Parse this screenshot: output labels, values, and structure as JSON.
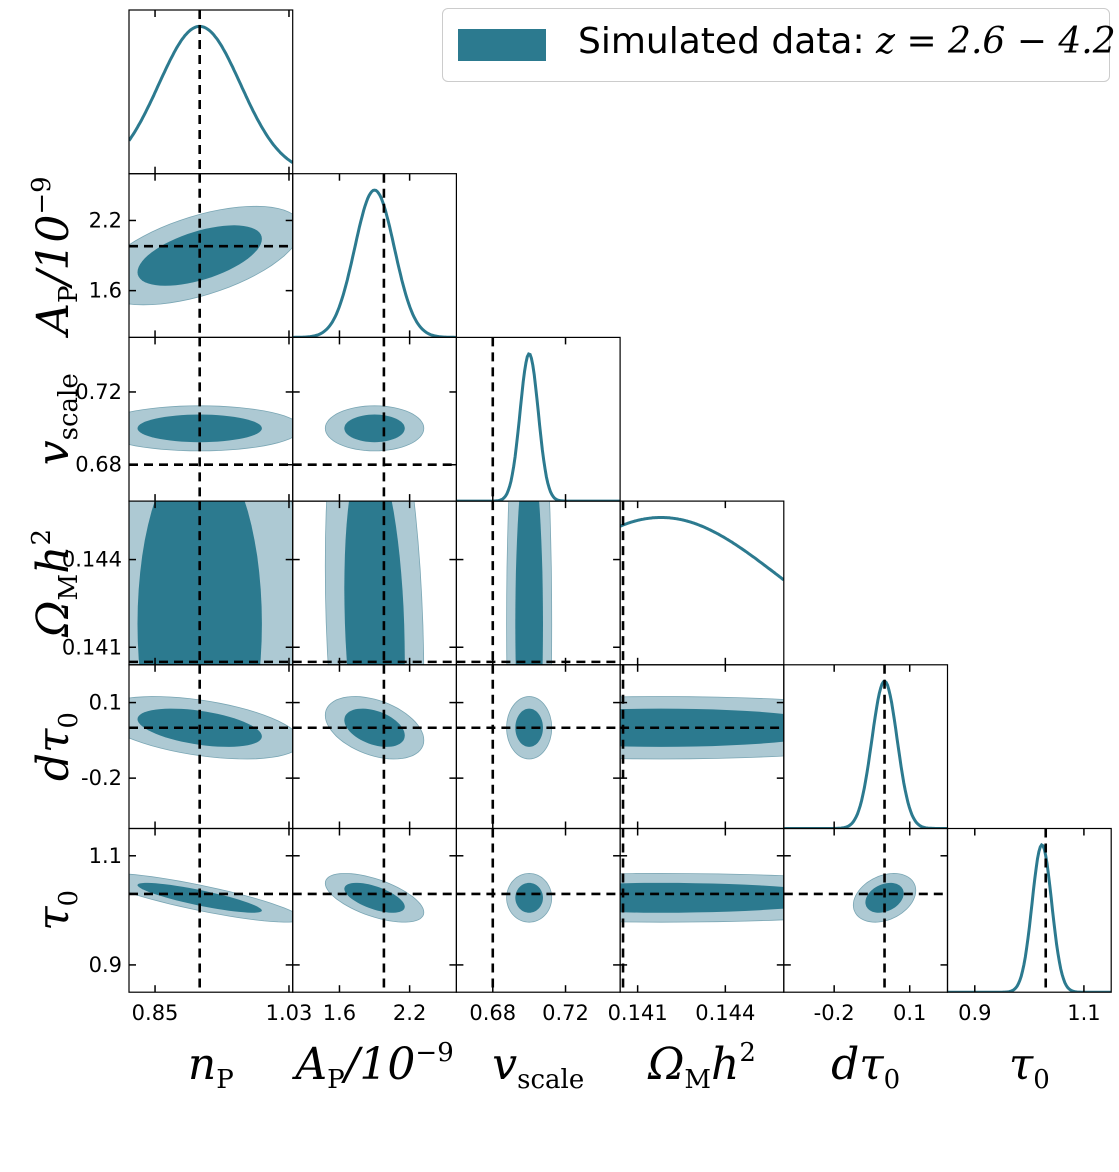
{
  "legend": {
    "label": "Simulated data:",
    "math": "z = 2.6 − 4.2",
    "color": "#2c7a8f"
  },
  "colors": {
    "dark": "#2c7a8f",
    "light": "#adc9d3",
    "truth": "#000000"
  },
  "chart_data": {
    "type": "corner",
    "parameters": [
      {
        "key": "nP",
        "label_base": "n",
        "label_sub": "P",
        "range": [
          0.815,
          1.035
        ],
        "truth": 0.91,
        "mean": 0.91,
        "sigma": 0.055,
        "ticks": [
          "0.85",
          "1.03"
        ],
        "tick_values": [
          0.85,
          1.03
        ]
      },
      {
        "key": "AP",
        "label_base": "A",
        "label_sub": "P",
        "label_suffix": "/10",
        "label_sup": "−9",
        "range": [
          1.2,
          2.6
        ],
        "truth": 1.98,
        "mean": 1.9,
        "sigma": 0.17,
        "ticks": [
          "1.6",
          "2.2"
        ],
        "tick_values": [
          1.6,
          2.2
        ]
      },
      {
        "key": "vscale",
        "label_base": "v",
        "label_sub": "scale",
        "range": [
          0.66,
          0.75
        ],
        "truth": 0.68,
        "mean": 0.7,
        "sigma": 0.005,
        "ticks": [
          "0.68",
          "0.72"
        ],
        "tick_values": [
          0.68,
          0.72
        ]
      },
      {
        "key": "OmegaMh2",
        "label_base": "Ω",
        "label_sub": "M",
        "label_suffix": "h",
        "label_sup": "2",
        "range": [
          0.1404,
          0.146
        ],
        "truth": 0.1405,
        "mean": 0.1418,
        "sigma": 0.004,
        "ticks": [
          "0.141",
          "0.144"
        ],
        "tick_values": [
          0.141,
          0.144
        ]
      },
      {
        "key": "dtau0",
        "label_base": "dτ",
        "label_sub": "0",
        "range": [
          -0.4,
          0.25
        ],
        "truth": 0.0,
        "mean": 0.0,
        "sigma": 0.05,
        "ticks": [
          "-0.2",
          "0.1"
        ],
        "tick_values": [
          -0.2,
          0.1
        ]
      },
      {
        "key": "tau0",
        "label_base": "τ",
        "label_sub": "0",
        "range": [
          0.85,
          1.15
        ],
        "truth": 1.03,
        "mean": 1.023,
        "sigma": 0.018,
        "ticks": [
          "0.9",
          "1.1"
        ],
        "tick_values": [
          0.9,
          1.1
        ]
      }
    ],
    "ytick_labels": {
      "AP": [
        "2.2",
        "1.6"
      ],
      "vscale": [
        "0.72",
        "0.68"
      ],
      "OmegaMh2": [
        "0.144",
        "0.141"
      ],
      "dtau0": [
        "0.1",
        "-0.2"
      ],
      "tau0": [
        "1.1",
        "0.9"
      ]
    }
  }
}
